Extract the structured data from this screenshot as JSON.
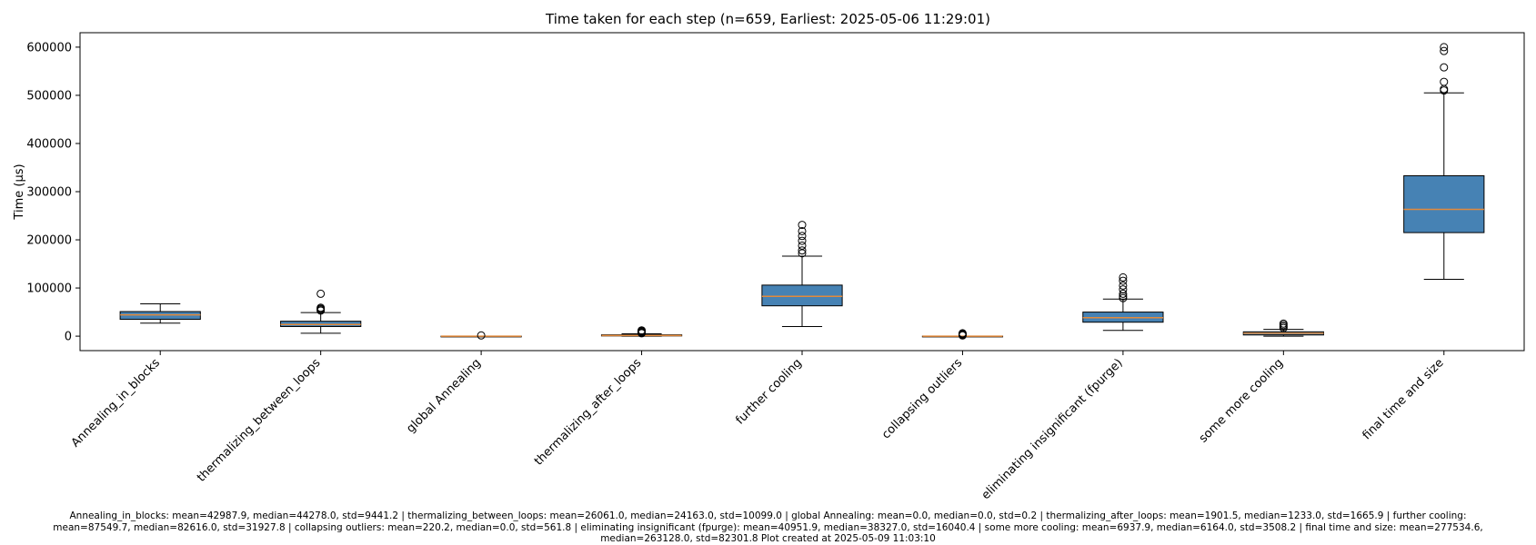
{
  "chart_data": {
    "type": "box",
    "title": "Time taken for each step (n=659, Earliest: 2025-05-06 11:29:01)",
    "xlabel": "",
    "ylabel": "Time (µs)",
    "ylim": [
      -30000,
      630000
    ],
    "yticks": [
      "0",
      "100000",
      "200000",
      "300000",
      "400000",
      "500000",
      "600000"
    ],
    "ytick_values": [
      0,
      100000,
      200000,
      300000,
      400000,
      500000,
      600000
    ],
    "grid": false,
    "box_color": "#4682b4",
    "median_color": "#e38a3b",
    "categories": [
      "Annealing_in_blocks",
      "thermalizing_between_loops",
      "global Annealing",
      "thermalizing_after_loops",
      "further cooling",
      "collapsing outliers",
      "eliminating insignificant (fpurge)",
      "some more cooling",
      "final time and size"
    ],
    "boxes": [
      {
        "label": "Annealing_in_blocks",
        "whisker_low": 27000,
        "q1": 35000,
        "median": 44278,
        "q3": 51000,
        "whisker_high": 67000,
        "outliers": []
      },
      {
        "label": "thermalizing_between_loops",
        "whisker_low": 6000,
        "q1": 20000,
        "median": 24163,
        "q3": 31000,
        "whisker_high": 49000,
        "outliers": [
          53000,
          55000,
          57000,
          59000,
          88000
        ]
      },
      {
        "label": "global Annealing",
        "whisker_low": 0,
        "q1": 0,
        "median": 0,
        "q3": 0,
        "whisker_high": 0,
        "outliers": [
          1500
        ]
      },
      {
        "label": "thermalizing_after_loops",
        "whisker_low": 0,
        "q1": 500,
        "median": 1233,
        "q3": 2800,
        "whisker_high": 5000,
        "outliers": [
          6000,
          7500,
          9000,
          10500,
          12000
        ]
      },
      {
        "label": "further cooling",
        "whisker_low": 20000,
        "q1": 63000,
        "median": 82616,
        "q3": 106000,
        "whisker_high": 166000,
        "outliers": [
          172000,
          178000,
          188000,
          198000,
          208000,
          218000,
          231000
        ]
      },
      {
        "label": "collapsing outliers",
        "whisker_low": 0,
        "q1": 0,
        "median": 0,
        "q3": 0,
        "whisker_high": 0,
        "outliers": [
          1500,
          3000,
          4500,
          6000
        ]
      },
      {
        "label": "eliminating insignificant (fpurge)",
        "whisker_low": 12000,
        "q1": 29000,
        "median": 38327,
        "q3": 50000,
        "whisker_high": 77000,
        "outliers": [
          79000,
          83000,
          88000,
          97000,
          105000,
          115000,
          122000
        ]
      },
      {
        "label": "some more cooling",
        "whisker_low": 0,
        "q1": 2500,
        "median": 6164,
        "q3": 9000,
        "whisker_high": 14000,
        "outliers": [
          17000,
          20000,
          23000,
          26000
        ]
      },
      {
        "label": "final time and size",
        "whisker_low": 118000,
        "q1": 215000,
        "median": 263128,
        "q3": 333000,
        "whisker_high": 505000,
        "outliers": [
          510000,
          513000,
          528000,
          558000,
          592000,
          600000
        ]
      }
    ]
  },
  "footnote": {
    "line1": "Annealing_in_blocks: mean=42987.9, median=44278.0, std=9441.2 | thermalizing_between_loops: mean=26061.0, median=24163.0, std=10099.0 | global Annealing: mean=0.0, median=0.0, std=0.2 | thermalizing_after_loops: mean=1901.5, median=1233.0, std=1665.9 | further cooling:",
    "line2": "mean=87549.7, median=82616.0, std=31927.8 | collapsing outliers: mean=220.2, median=0.0, std=561.8 | eliminating insignificant (fpurge): mean=40951.9, median=38327.0, std=16040.4 | some more cooling: mean=6937.9, median=6164.0, std=3508.2 | final time and size: mean=277534.6,",
    "line3": "median=263128.0, std=82301.8    Plot created at 2025-05-09 11:03:10"
  }
}
